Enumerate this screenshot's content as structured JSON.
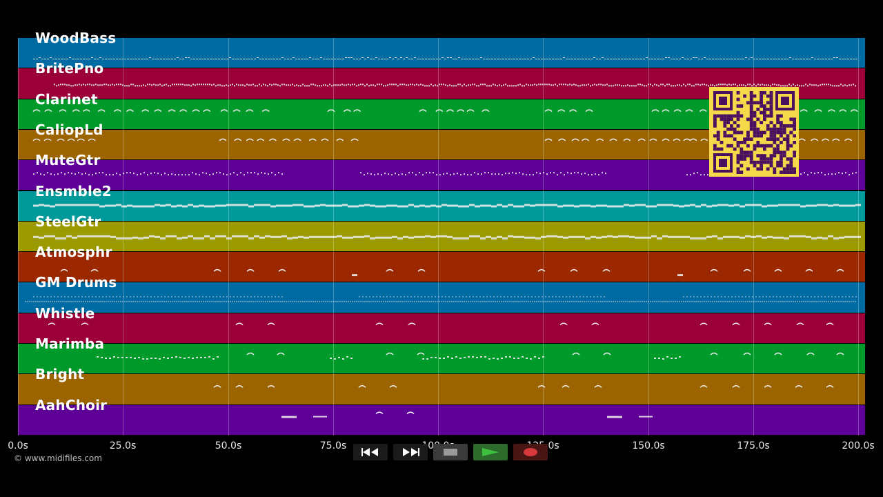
{
  "tracks": [
    {
      "name": "WoodBass",
      "color": "#006aa3"
    },
    {
      "name": "BritePno",
      "color": "#9b0038"
    },
    {
      "name": "Clarinet",
      "color": "#009a2a"
    },
    {
      "name": "CaliopLd",
      "color": "#9b6400"
    },
    {
      "name": "MuteGtr",
      "color": "#5e0097"
    },
    {
      "name": "Ensmble2",
      "color": "#009a9a"
    },
    {
      "name": "SteelGtr",
      "color": "#9b9a00"
    },
    {
      "name": "Atmosphr",
      "color": "#9b2800"
    },
    {
      "name": "GM Drums",
      "color": "#006aa3"
    },
    {
      "name": "Whistle",
      "color": "#9b0038"
    },
    {
      "name": "Marimba",
      "color": "#009a2a"
    },
    {
      "name": "Bright",
      "color": "#9b6400"
    },
    {
      "name": "AahChoir",
      "color": "#5e0097"
    }
  ],
  "timeline": {
    "ticks": [
      "0.0s",
      "25.0s",
      "50.0s",
      "75.0s",
      "100.0s",
      "125.0s",
      "150.0s",
      "175.0s",
      "200.0s"
    ]
  },
  "copyright": "© www.midifiles.com",
  "controls": {
    "rewind": "rewind-icon",
    "fast_forward": "fast-forward-icon",
    "stop": "stop-icon",
    "play": "play-icon",
    "record": "record-icon"
  },
  "colors": {
    "play_icon": "#3fbf3f",
    "record_icon": "#d63a3a",
    "qr_background": "#f5d94a",
    "qr_modules": "#4a1060"
  }
}
